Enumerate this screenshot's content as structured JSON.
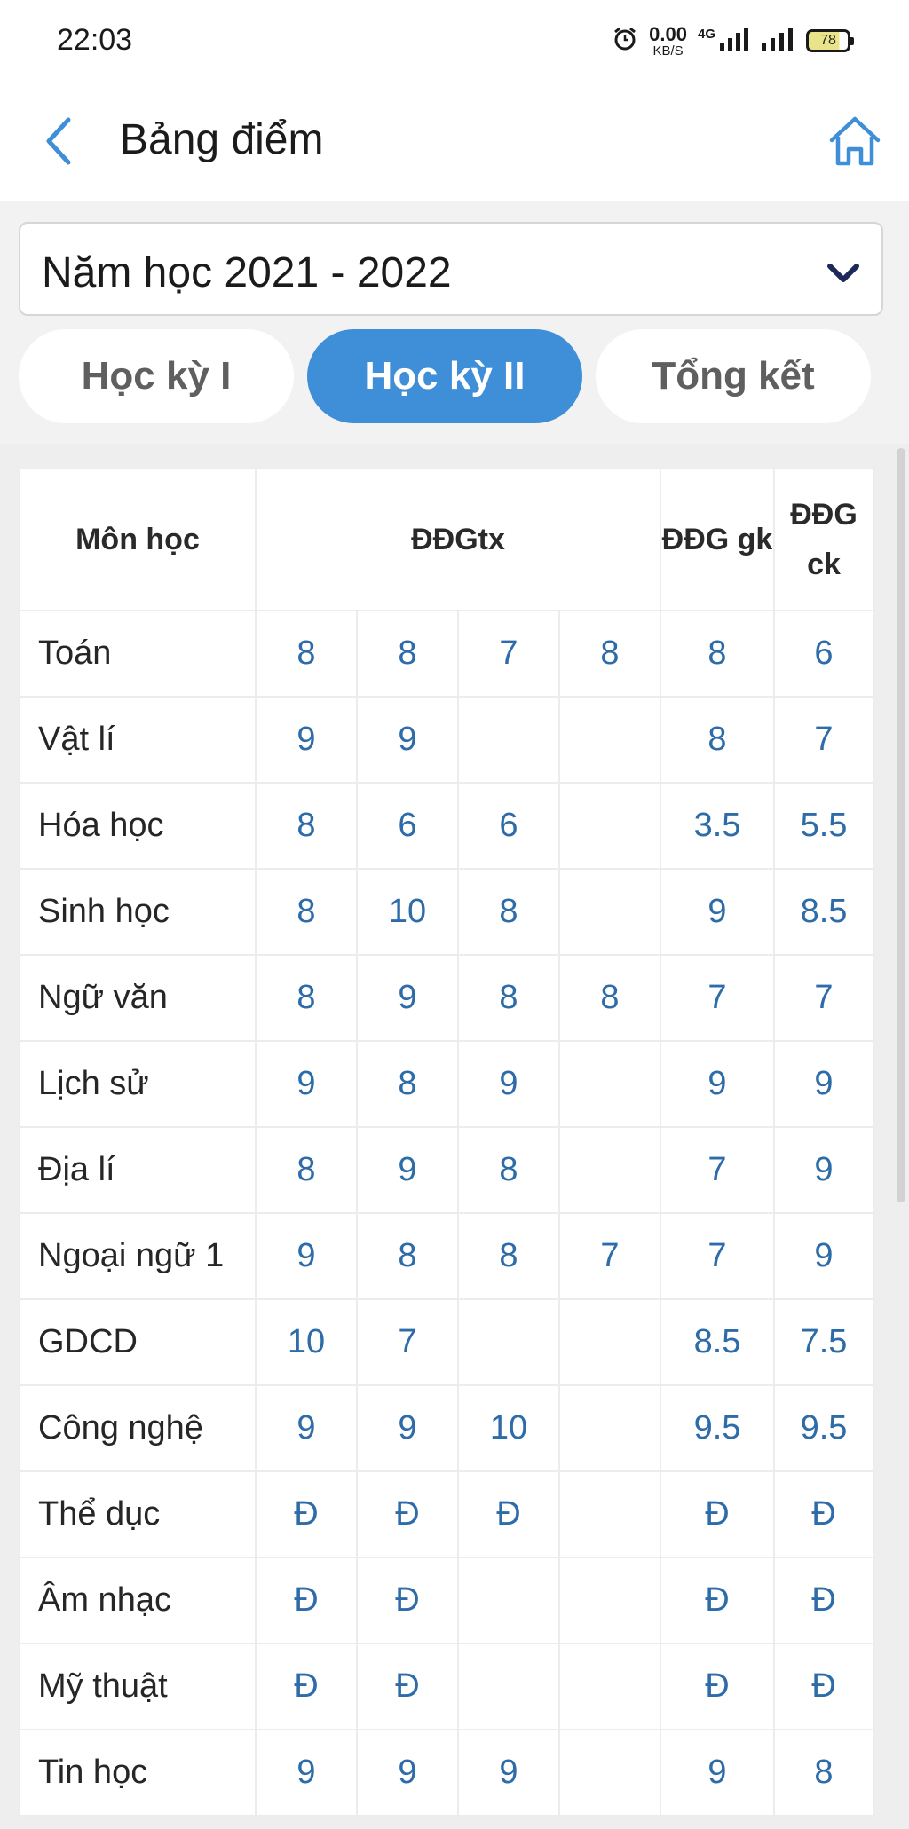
{
  "status_bar": {
    "time": "22:03",
    "net_speed_value": "0.00",
    "net_speed_unit": "KB/S",
    "network_type": "4G",
    "battery_level": "78"
  },
  "header": {
    "title": "Bảng điểm"
  },
  "year_select": {
    "selected": "Năm học 2021 - 2022"
  },
  "tabs": [
    {
      "label": "Học kỳ I",
      "active": false
    },
    {
      "label": "Học kỳ II",
      "active": true
    },
    {
      "label": "Tổng kết",
      "active": false
    }
  ],
  "table": {
    "headers": {
      "subject": "Môn học",
      "ddgtx": "ĐĐGtx",
      "ddggk": "ĐĐG gk",
      "ddgck": "ĐĐG ck"
    },
    "rows": [
      {
        "subject": "Toán",
        "tx": [
          "8",
          "8",
          "7",
          "8"
        ],
        "gk": "8",
        "ck": "6"
      },
      {
        "subject": "Vật lí",
        "tx": [
          "9",
          "9",
          "",
          ""
        ],
        "gk": "8",
        "ck": "7"
      },
      {
        "subject": "Hóa học",
        "tx": [
          "8",
          "6",
          "6",
          ""
        ],
        "gk": "3.5",
        "ck": "5.5"
      },
      {
        "subject": "Sinh học",
        "tx": [
          "8",
          "10",
          "8",
          ""
        ],
        "gk": "9",
        "ck": "8.5"
      },
      {
        "subject": "Ngữ văn",
        "tx": [
          "8",
          "9",
          "8",
          "8"
        ],
        "gk": "7",
        "ck": "7"
      },
      {
        "subject": "Lịch sử",
        "tx": [
          "9",
          "8",
          "9",
          ""
        ],
        "gk": "9",
        "ck": "9"
      },
      {
        "subject": "Địa lí",
        "tx": [
          "8",
          "9",
          "8",
          ""
        ],
        "gk": "7",
        "ck": "9"
      },
      {
        "subject": "Ngoại ngữ 1",
        "tx": [
          "9",
          "8",
          "8",
          "7"
        ],
        "gk": "7",
        "ck": "9"
      },
      {
        "subject": "GDCD",
        "tx": [
          "10",
          "7",
          "",
          ""
        ],
        "gk": "8.5",
        "ck": "7.5"
      },
      {
        "subject": "Công nghệ",
        "tx": [
          "9",
          "9",
          "10",
          ""
        ],
        "gk": "9.5",
        "ck": "9.5"
      },
      {
        "subject": "Thể dục",
        "tx": [
          "Đ",
          "Đ",
          "Đ",
          ""
        ],
        "gk": "Đ",
        "ck": "Đ"
      },
      {
        "subject": "Âm nhạc",
        "tx": [
          "Đ",
          "Đ",
          "",
          ""
        ],
        "gk": "Đ",
        "ck": "Đ"
      },
      {
        "subject": "Mỹ thuật",
        "tx": [
          "Đ",
          "Đ",
          "",
          ""
        ],
        "gk": "Đ",
        "ck": "Đ"
      },
      {
        "subject": "Tin học",
        "tx": [
          "9",
          "9",
          "9",
          ""
        ],
        "gk": "9",
        "ck": "8"
      }
    ]
  },
  "colors": {
    "accent": "#3e8ed8",
    "score_text": "#2d6ca8",
    "back_icon": "#3e8ed8"
  }
}
